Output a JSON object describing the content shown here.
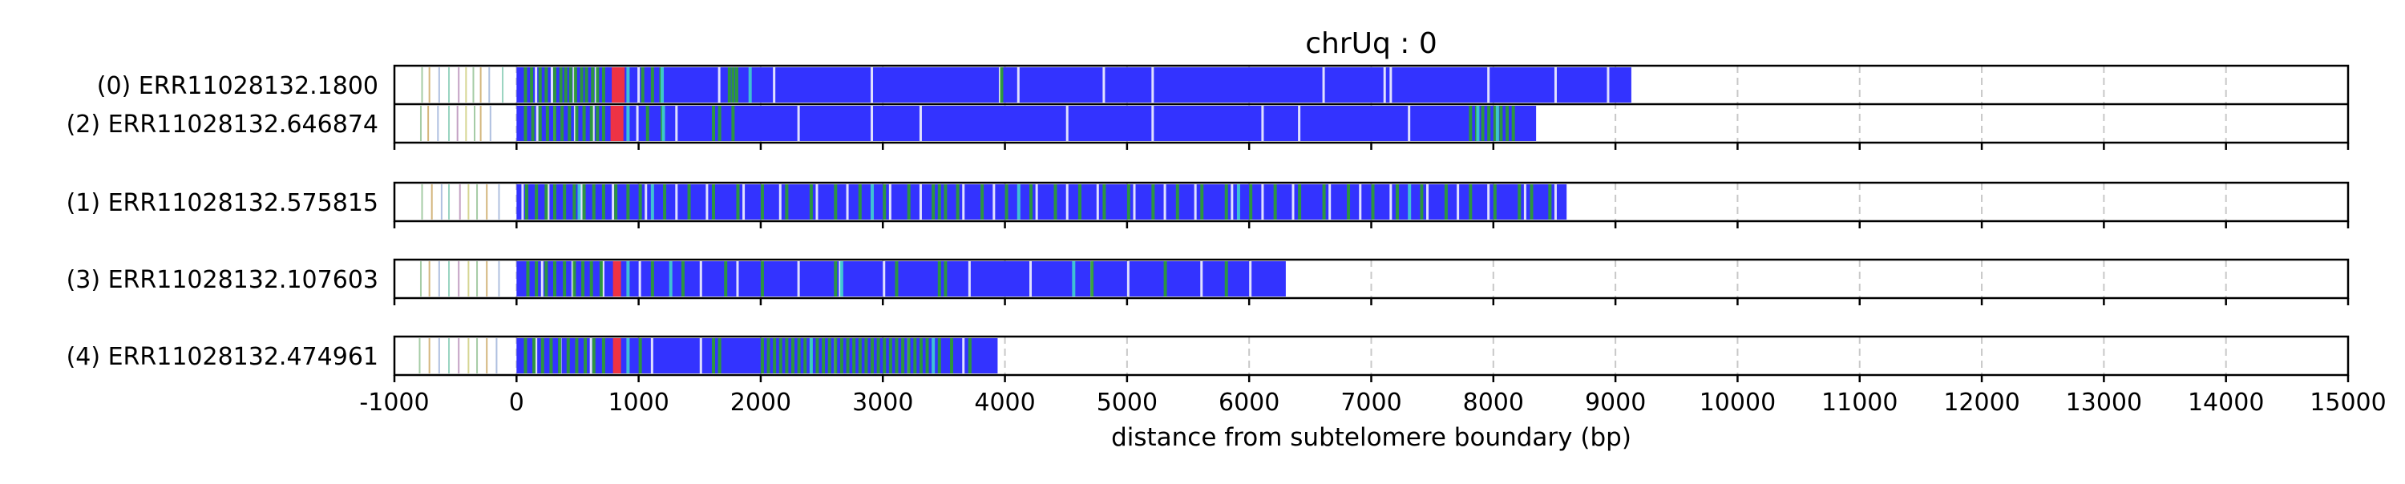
{
  "chart_data": {
    "type": "bar",
    "title": "chrUq : 0",
    "xlabel": "distance from subtelomere boundary (bp)",
    "xlim": [
      -1000,
      15000
    ],
    "xticks": [
      -1000,
      0,
      1000,
      2000,
      3000,
      4000,
      5000,
      6000,
      7000,
      8000,
      9000,
      10000,
      11000,
      12000,
      13000,
      14000,
      15000
    ],
    "grid": "vertical dashed",
    "colors": {
      "repeat": "#3333ff",
      "variant_green": "#2ca02c",
      "variant_red": "#ee3344",
      "variant_cyan": "#3fd0d0",
      "variant_white": "#ffffff",
      "grid": "#c8c8c8"
    },
    "panels": [
      {
        "reads": [
          {
            "label": "(0) ERR11028132.1800",
            "start": -1000,
            "end": 9130,
            "subtelomere_marks": [
              -780,
              -720,
              -640,
              -560,
              -480,
              -420,
              -360,
              -300,
              -230,
              -120
            ],
            "blue_span": [
              0,
              9130
            ],
            "green": [
              60,
              110,
              180,
              230,
              300,
              350,
              390,
              430,
              470,
              520,
              560,
              610,
              650,
              700,
              1020,
              1100,
              1170,
              1730,
              1760,
              1790,
              3960
            ],
            "red": [
              780,
              820
            ],
            "cyan": [
              900,
              1180,
              1900
            ],
            "white": [
              150,
              280,
              460,
              640,
              990,
              1650,
              2100,
              2900,
              3950,
              4100,
              4800,
              5200,
              6600,
              7100,
              7150,
              7950,
              8500,
              8930
            ]
          },
          {
            "label": "(2) ERR11028132.646874",
            "start": -1000,
            "end": 8350,
            "subtelomere_marks": [
              -790,
              -730,
              -650,
              -560,
              -490,
              -420,
              -350,
              -300,
              -220
            ],
            "blue_span": [
              0,
              8350
            ],
            "green": [
              60,
              120,
              180,
              240,
              300,
              360,
              420,
              480,
              540,
              600,
              650,
              700,
              1060,
              1180,
              1600,
              1650,
              1760,
              7800,
              7850,
              7900,
              7950,
              8000,
              8050,
              8100,
              8150
            ],
            "red": [
              770,
              810
            ],
            "cyan": [
              900,
              1190,
              7860,
              8020
            ],
            "white": [
              160,
              300,
              470,
              620,
              980,
              1300,
              2300,
              2900,
              3300,
              4500,
              5200,
              6100,
              6400,
              7300
            ]
          }
        ]
      },
      {
        "reads": [
          {
            "label": "(1) ERR11028132.575815",
            "start": -1000,
            "end": 8600,
            "subtelomere_marks": [
              -780,
              -700,
              -620,
              -560,
              -470,
              -400,
              -330,
              -250,
              -150
            ],
            "blue_span": [
              0,
              8600
            ],
            "green": [
              70,
              150,
              230,
              300,
              380,
              460,
              540,
              620,
              700,
              800,
              900,
              1000,
              1200,
              1400,
              1600,
              1800,
              2000,
              2200,
              2400,
              2600,
              2800,
              3000,
              3200,
              3400,
              3450,
              3500,
              3600,
              3800,
              4000,
              4200,
              4400,
              4600,
              4800,
              5000,
              5200,
              5400,
              5600,
              5800,
              6000,
              6200,
              6400,
              6600,
              6800,
              7000,
              7200,
              7400,
              7600,
              7800,
              8000,
              8200,
              8300,
              8450
            ],
            "red": [],
            "cyan": [
              500,
              1100,
              2900,
              4100,
              5900,
              7300
            ],
            "white": [
              40,
              250,
              520,
              780,
              1050,
              1300,
              1550,
              1850,
              2150,
              2450,
              2700,
              3050,
              3300,
              3650,
              3900,
              4250,
              4500,
              4750,
              5050,
              5300,
              5550,
              5850,
              6100,
              6350,
              6650,
              6900,
              7150,
              7450,
              7700,
              7950,
              8250,
              8500
            ]
          }
        ]
      },
      {
        "reads": [
          {
            "label": "(3) ERR11028132.107603",
            "start": -1000,
            "end": 6300,
            "subtelomere_marks": [
              -790,
              -720,
              -640,
              -560,
              -480,
              -400,
              -330,
              -250,
              -150
            ],
            "blue_span": [
              0,
              6300
            ],
            "green": [
              80,
              150,
              230,
              300,
              380,
              460,
              530,
              600,
              680,
              1100,
              1350,
              1700,
              2000,
              2600,
              3100,
              3450,
              3500,
              4700,
              5300,
              5800
            ],
            "red": [
              790
            ],
            "cyan": [
              900,
              1250,
              2650,
              4550
            ],
            "white": [
              200,
              450,
              700,
              1000,
              1500,
              1800,
              2300,
              2640,
              3000,
              3700,
              4200,
              4700,
              5000,
              5600,
              6000
            ]
          }
        ]
      },
      {
        "reads": [
          {
            "label": "(4) ERR11028132.474961",
            "start": -1000,
            "end": 3940,
            "subtelomere_marks": [
              -800,
              -720,
              -640,
              -560,
              -480,
              -400,
              -330,
              -250,
              -170
            ],
            "blue_span": [
              0,
              3940
            ],
            "green": [
              60,
              130,
              200,
              270,
              340,
              410,
              480,
              550,
              620,
              700,
              1000,
              1600,
              1650,
              2000,
              2050,
              2100,
              2150,
              2200,
              2250,
              2300,
              2350,
              2400,
              2450,
              2500,
              2550,
              2600,
              2650,
              2700,
              2750,
              2800,
              2850,
              2900,
              2950,
              3000,
              3050,
              3100,
              3150,
              3200,
              3250,
              3300,
              3350,
              3450,
              3550,
              3700
            ],
            "red": [
              790
            ],
            "cyan": [
              900,
              2400,
              3400
            ],
            "white": [
              150,
              350,
              600,
              1100,
              1500,
              2600,
              3200,
              3650
            ]
          }
        ]
      }
    ]
  }
}
